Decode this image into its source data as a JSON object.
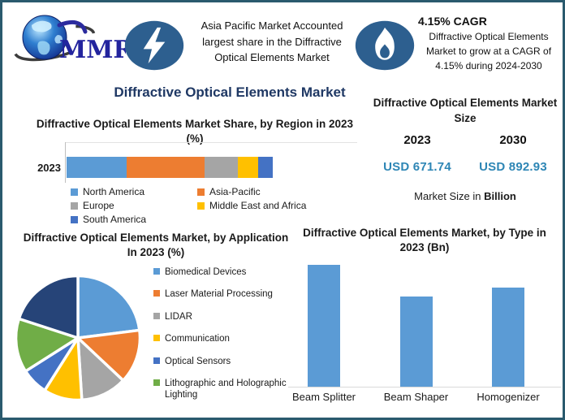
{
  "frame": {
    "border_color": "#2a5a6e",
    "background": "#ffffff"
  },
  "header": {
    "logo_text": "MMR",
    "asia_highlight": {
      "lines": [
        "Asia Pacific Market Accounted",
        "largest share in the Diffractive",
        "Optical Elements Market"
      ]
    },
    "cagr_highlight": {
      "title": "4.15% CAGR",
      "lines": [
        "Diffractive Optical Elements",
        "Market to grow at a CAGR of",
        "4.15% during 2024-2030"
      ]
    },
    "badge_color": "#2d5f8f"
  },
  "main_title": "Diffractive Optical Elements Market",
  "market_size": {
    "title": "Diffractive Optical Elements Market Size",
    "columns": [
      {
        "year": "2023",
        "value": "USD 671.74"
      },
      {
        "year": "2030",
        "value": "USD 892.93"
      }
    ],
    "note_prefix": "Market Size in",
    "note_bold": "Billion",
    "value_color": "#2e86b5"
  },
  "chart_data": [
    {
      "id": "region_share",
      "type": "bar",
      "subtype": "stacked-horizontal",
      "title": "Diffractive Optical Elements Market Share, by Region in 2023 (%)",
      "category": "2023",
      "labels": [
        "North America",
        "Asia-Pacific",
        "Europe",
        "Middle East and Africa",
        "South America"
      ],
      "values": [
        29,
        38,
        16,
        10,
        7
      ],
      "colors": [
        "#5B9BD5",
        "#ED7D31",
        "#A5A5A5",
        "#FFC000",
        "#4472C4"
      ],
      "unit": "%",
      "value_labels_shown": false,
      "legend_position": "bottom"
    },
    {
      "id": "application_share",
      "type": "pie",
      "title": "Diffractive Optical Elements Market, by Application In 2023 (%)",
      "labels": [
        "Biomedical Devices",
        "Laser Material Processing",
        "LIDAR",
        "Communication",
        "Optical Sensors",
        "Lithographic and Holographic Lighting",
        ""
      ],
      "values": [
        23,
        14,
        12,
        10,
        7,
        14,
        20
      ],
      "colors": [
        "#5B9BD5",
        "#ED7D31",
        "#A5A5A5",
        "#FFC000",
        "#4472C4",
        "#70AD47",
        "#264478"
      ],
      "unit": "%",
      "start_angle_deg": 0,
      "direction": "clockwise",
      "legend_position": "right",
      "note": "seventh slice has no visible legend entry in source image"
    },
    {
      "id": "type_market",
      "type": "bar",
      "title": "Diffractive Optical Elements Market, by Type in 2023 (Bn)",
      "categories": [
        "Beam Splitter",
        "Beam Shaper",
        "Homogenizer"
      ],
      "values_relative": [
        1.0,
        0.74,
        0.81
      ],
      "bar_color": "#5B9BD5",
      "unit": "Bn",
      "value_labels_shown": false,
      "y_axis_shown": false
    }
  ]
}
